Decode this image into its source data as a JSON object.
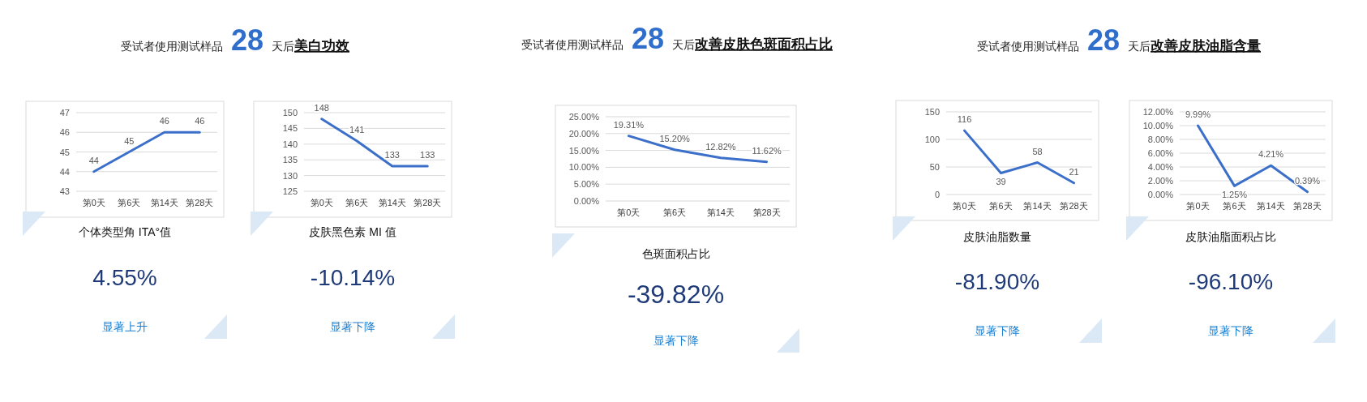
{
  "chart_data": [
    {
      "type": "other",
      "annotations": [
        "受试者使用测试样品",
        "28",
        "天后",
        "美白功效"
      ]
    },
    {
      "type": "line",
      "categories": [
        "第0天",
        "第6天",
        "第14天",
        "第28天"
      ],
      "series": [
        {
          "color": "#3b6fc9",
          "values": [
            44,
            45,
            46,
            46
          ],
          "value_labels": [
            "44",
            "45",
            "46",
            "46"
          ]
        }
      ],
      "ylim": [
        43,
        47
      ],
      "yticks": [
        43,
        44,
        45,
        46,
        47
      ],
      "grid": "y",
      "xlabel": "个体类型角 ITA°值",
      "annotations": [
        "4.55%",
        "显著上升"
      ]
    },
    {
      "type": "line",
      "categories": [
        "第0天",
        "第6天",
        "第14天",
        "第28天"
      ],
      "series": [
        {
          "color": "#3b6fc9",
          "values": [
            148,
            141,
            133,
            133
          ],
          "value_labels": [
            "148",
            "141",
            "133",
            "133"
          ]
        }
      ],
      "ylim": [
        125,
        150
      ],
      "yticks": [
        125,
        130,
        135,
        140,
        145,
        150
      ],
      "grid": "y",
      "xlabel": "皮肤黑色素 MI 值",
      "annotations": [
        "-10.14%",
        "显著下降"
      ]
    },
    {
      "type": "other",
      "annotations": [
        "受试者使用测试样品",
        "28",
        "天后",
        "改善皮肤色斑面积占比"
      ]
    },
    {
      "type": "line",
      "categories": [
        "第0天",
        "第6天",
        "第14天",
        "第28天"
      ],
      "series": [
        {
          "color": "#3b6fc9",
          "values": [
            19.31,
            15.2,
            12.82,
            11.62
          ],
          "value_labels": [
            "19.31%",
            "15.20%",
            "12.82%",
            "11.62%"
          ]
        }
      ],
      "ylim": [
        0,
        25
      ],
      "yticks": [
        {
          "value": 0,
          "label": "0.00%"
        },
        {
          "value": 5,
          "label": "5.00%"
        },
        {
          "value": 10,
          "label": "10.00%"
        },
        {
          "value": 15,
          "label": "15.00%"
        },
        {
          "value": 20,
          "label": "20.00%"
        },
        {
          "value": 25,
          "label": "25.00%"
        }
      ],
      "grid": "y",
      "xlabel": "色斑面积占比",
      "annotations": [
        "-39.82%",
        "显著下降"
      ]
    },
    {
      "type": "other",
      "annotations": [
        "受试者使用测试样品",
        "28",
        "天后",
        "改善皮肤油脂含量"
      ]
    },
    {
      "type": "line",
      "categories": [
        "第0天",
        "第6天",
        "第14天",
        "第28天"
      ],
      "series": [
        {
          "color": "#3b6fc9",
          "values": [
            116,
            39,
            58,
            21
          ],
          "value_labels": [
            "116",
            "39",
            "58",
            "21"
          ]
        }
      ],
      "ylim": [
        0,
        150
      ],
      "yticks": [
        0,
        50,
        100,
        150
      ],
      "grid": "y",
      "xlabel": "皮肤油脂数量",
      "annotations": [
        "-81.90%",
        "显著下降"
      ]
    },
    {
      "type": "line",
      "categories": [
        "第0天",
        "第6天",
        "第14天",
        "第28天"
      ],
      "series": [
        {
          "color": "#3b6fc9",
          "values": [
            9.99,
            1.25,
            4.21,
            0.39
          ],
          "value_labels": [
            "9.99%",
            "1.25%",
            "4.21%",
            "0.39%"
          ]
        }
      ],
      "ylim": [
        0,
        12
      ],
      "yticks": [
        {
          "value": 0,
          "label": "0.00%"
        },
        {
          "value": 2,
          "label": "2.00%"
        },
        {
          "value": 4,
          "label": "4.00%"
        },
        {
          "value": 6,
          "label": "6.00%"
        },
        {
          "value": 8,
          "label": "8.00%"
        },
        {
          "value": 10,
          "label": "10.00%"
        },
        {
          "value": 12,
          "label": "12.00%"
        }
      ],
      "grid": "y",
      "xlabel": "皮肤油脂面积占比",
      "annotations": [
        "-96.10%",
        "显著下降"
      ]
    }
  ]
}
